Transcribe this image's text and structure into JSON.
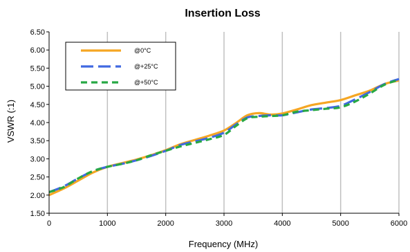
{
  "chart_data": {
    "type": "line",
    "title": "Insertion Loss",
    "xlabel": "Frequency (MHz)",
    "ylabel": "VSWR (:1)",
    "xlim": [
      0,
      6000
    ],
    "ylim": [
      1.5,
      6.5
    ],
    "xticks": [
      "0",
      "1000",
      "2000",
      "3000",
      "4000",
      "5000",
      "6000"
    ],
    "yticks": [
      "1.50",
      "2.00",
      "2.50",
      "3.00",
      "3.50",
      "4.00",
      "4.50",
      "5.00",
      "5.50",
      "6.00",
      "6.50"
    ],
    "grid": "vertical",
    "legend_position": "top-left",
    "series": [
      {
        "name": "@0°C",
        "color": "#F5A623",
        "style": "solid",
        "x": [
          0,
          250,
          500,
          750,
          1000,
          1250,
          1500,
          1750,
          2000,
          2250,
          2500,
          2750,
          3000,
          3200,
          3400,
          3600,
          3800,
          4000,
          4250,
          4500,
          4750,
          5000,
          5250,
          5500,
          5750,
          6000
        ],
        "y": [
          2.0,
          2.18,
          2.4,
          2.62,
          2.78,
          2.88,
          2.98,
          3.1,
          3.24,
          3.4,
          3.52,
          3.64,
          3.78,
          3.98,
          4.2,
          4.26,
          4.22,
          4.25,
          4.36,
          4.48,
          4.55,
          4.62,
          4.75,
          4.88,
          5.06,
          5.16
        ]
      },
      {
        "name": "@+25°C",
        "color": "#4169E1",
        "style": "dashed",
        "x": [
          0,
          250,
          500,
          750,
          1000,
          1250,
          1500,
          1750,
          2000,
          2250,
          2500,
          2750,
          3000,
          3200,
          3400,
          3600,
          3800,
          4000,
          4250,
          4500,
          4750,
          5000,
          5250,
          5500,
          5750,
          6000
        ],
        "y": [
          2.08,
          2.24,
          2.46,
          2.66,
          2.78,
          2.86,
          2.96,
          3.08,
          3.22,
          3.38,
          3.48,
          3.58,
          3.72,
          3.94,
          4.14,
          4.18,
          4.2,
          4.2,
          4.28,
          4.36,
          4.4,
          4.46,
          4.64,
          4.84,
          5.06,
          5.2
        ]
      },
      {
        "name": "@+50°C",
        "color": "#27A844",
        "style": "dashed",
        "x": [
          0,
          250,
          500,
          750,
          1000,
          1250,
          1500,
          1750,
          2000,
          2250,
          2500,
          2750,
          3000,
          3200,
          3400,
          3600,
          3800,
          4000,
          4250,
          4500,
          4750,
          5000,
          5250,
          5500,
          5750,
          6000
        ],
        "y": [
          2.08,
          2.22,
          2.46,
          2.66,
          2.78,
          2.86,
          2.96,
          3.1,
          3.22,
          3.34,
          3.44,
          3.54,
          3.66,
          3.9,
          4.12,
          4.16,
          4.18,
          4.2,
          4.3,
          4.34,
          4.38,
          4.42,
          4.58,
          4.8,
          5.04,
          5.18
        ]
      }
    ]
  }
}
